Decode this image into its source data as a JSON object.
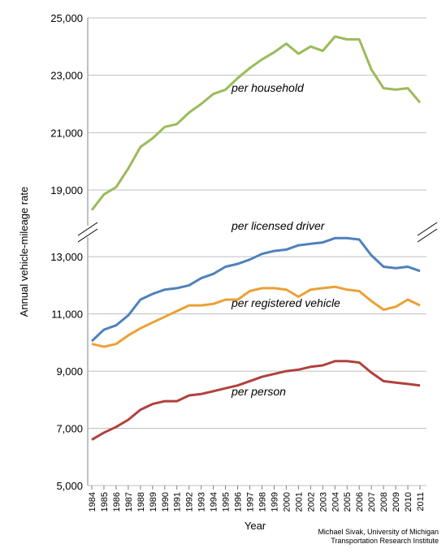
{
  "chart_data": {
    "type": "line",
    "ylabel": "Annual vehicle-mileage rate",
    "xlabel": "Year",
    "note": [
      "Michael Sivak, University of Michigan",
      "Transportation Research Institute"
    ],
    "grid": true,
    "categories": [
      "1984",
      "1985",
      "1986",
      "1987",
      "1988",
      "1989",
      "1990",
      "1991",
      "1992",
      "1993",
      "1994",
      "1995",
      "1996",
      "1997",
      "1998",
      "1999",
      "2000",
      "2001",
      "2002",
      "2003",
      "2004",
      "2005",
      "2006",
      "2007",
      "2008",
      "2009",
      "2010",
      "2011"
    ],
    "panels": [
      {
        "ylim": [
          17700,
          25000
        ],
        "yticks": [
          {
            "value": 19000,
            "label": "19,000"
          },
          {
            "value": 21000,
            "label": "21,000"
          },
          {
            "value": 23000,
            "label": "23,000"
          },
          {
            "value": 25000,
            "label": "25,000"
          }
        ],
        "series": [
          {
            "name": "per household",
            "color": "#9bbb59",
            "values": [
              18300,
              18850,
              19100,
              19750,
              20500,
              20800,
              21200,
              21300,
              21700,
              22000,
              22350,
              22500,
              22900,
              23250,
              23550,
              23800,
              24100,
              23750,
              24000,
              23850,
              24350,
              24250,
              24250,
              23200,
              22550,
              22500,
              22550,
              22050
            ]
          }
        ]
      },
      {
        "ylim": [
          5000,
          13800
        ],
        "yticks": [
          {
            "value": 5000,
            "label": "5,000"
          },
          {
            "value": 7000,
            "label": "7,000"
          },
          {
            "value": 9000,
            "label": "9,000"
          },
          {
            "value": 11000,
            "label": "11,000"
          },
          {
            "value": 13000,
            "label": "13,000"
          }
        ],
        "series": [
          {
            "name": "per licensed driver",
            "color": "#4f81bd",
            "values": [
              10050,
              10450,
              10600,
              10950,
              11500,
              11700,
              11850,
              11900,
              12000,
              12250,
              12400,
              12650,
              12750,
              12900,
              13100,
              13200,
              13250,
              13400,
              13450,
              13500,
              13650,
              13650,
              13600,
              13050,
              12650,
              12600,
              12650,
              12500
            ]
          },
          {
            "name": "per registered vehicle",
            "color": "#eba134",
            "values": [
              9950,
              9850,
              9950,
              10250,
              10500,
              10700,
              10900,
              11100,
              11300,
              11300,
              11350,
              11500,
              11500,
              11800,
              11900,
              11900,
              11850,
              11600,
              11850,
              11900,
              11950,
              11850,
              11800,
              11450,
              11150,
              11250,
              11500,
              11300
            ]
          },
          {
            "name": "per person",
            "color": "#b0413e",
            "values": [
              6600,
              6850,
              7050,
              7300,
              7650,
              7850,
              7950,
              7950,
              8150,
              8200,
              8300,
              8400,
              8500,
              8650,
              8800,
              8900,
              9000,
              9050,
              9150,
              9200,
              9350,
              9350,
              9300,
              8950,
              8650,
              8600,
              8550,
              8500
            ]
          }
        ]
      }
    ]
  }
}
